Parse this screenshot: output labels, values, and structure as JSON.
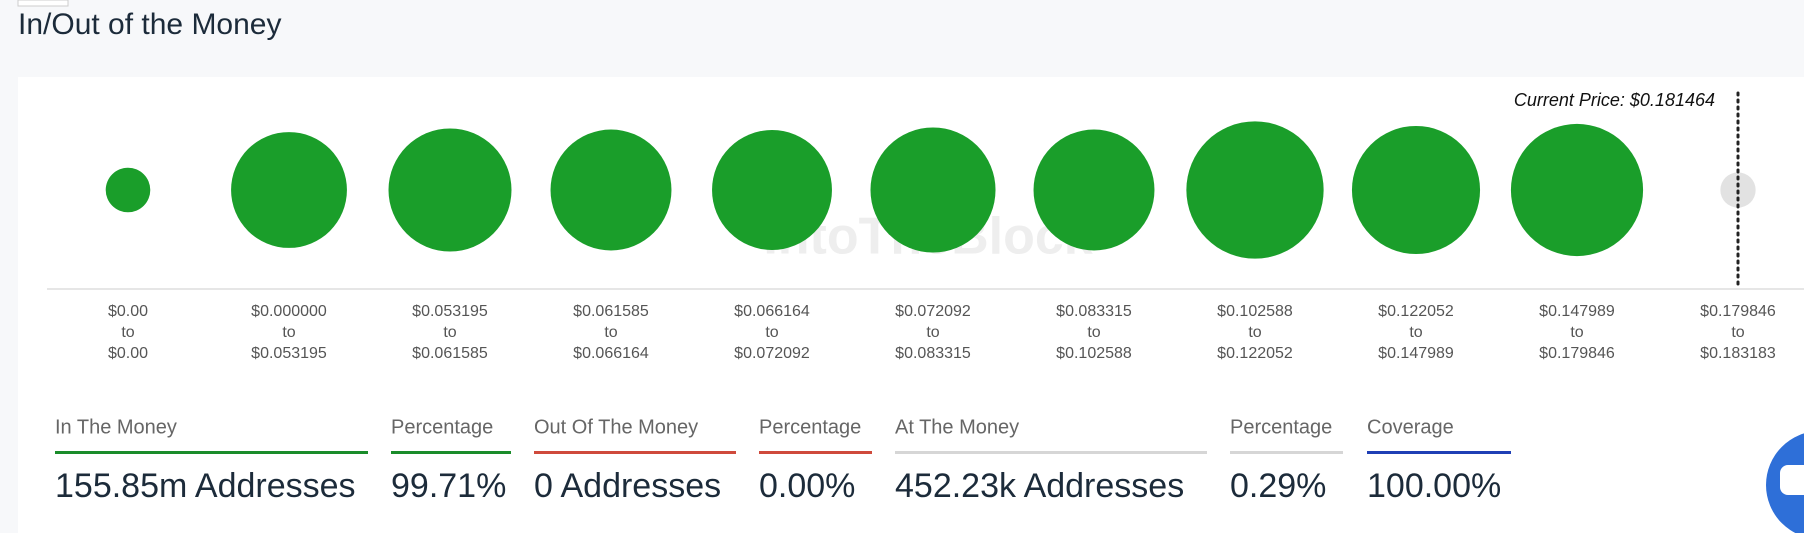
{
  "chart_data": {
    "type": "bubble",
    "title": "In/Out of the Money",
    "watermark": "IntoTheBlock",
    "current_price_label": "Current Price: $0.181464",
    "range_joiner": "to",
    "ranges": [
      {
        "from": "$0.00",
        "to": "$0.00"
      },
      {
        "from": "$0.000000",
        "to": "$0.053195"
      },
      {
        "from": "$0.053195",
        "to": "$0.061585"
      },
      {
        "from": "$0.061585",
        "to": "$0.066164"
      },
      {
        "from": "$0.066164",
        "to": "$0.072092"
      },
      {
        "from": "$0.072092",
        "to": "$0.083315"
      },
      {
        "from": "$0.083315",
        "to": "$0.102588"
      },
      {
        "from": "$0.102588",
        "to": "$0.122052"
      },
      {
        "from": "$0.122052",
        "to": "$0.147989"
      },
      {
        "from": "$0.147989",
        "to": "$0.179846"
      },
      {
        "from": "$0.179846",
        "to": "$0.183183"
      }
    ],
    "values": [
      1.06,
      14.39,
      16.56,
      15.92,
      15.61,
      17.21,
      15.92,
      21.37,
      18.21,
      19.58,
      0.45
    ],
    "colors": [
      "#1a9e2a",
      "#1a9e2a",
      "#1a9e2a",
      "#1a9e2a",
      "#1a9e2a",
      "#1a9e2a",
      "#1a9e2a",
      "#1a9e2a",
      "#1a9e2a",
      "#1a9e2a",
      "#e2e2e2"
    ]
  },
  "stats": [
    {
      "label": "In The Money",
      "value": "155.85m Addresses",
      "color": "#1a8c2a"
    },
    {
      "label": "Percentage",
      "value": "99.71%",
      "color": "#1a8c2a"
    },
    {
      "label": "Out Of The Money",
      "value": "0 Addresses",
      "color": "#cf4a3c"
    },
    {
      "label": "Percentage",
      "value": "0.00%",
      "color": "#cf4a3c"
    },
    {
      "label": "At The Money",
      "value": "452.23k Addresses",
      "color": "#d6d6d6"
    },
    {
      "label": "Percentage",
      "value": "0.29%",
      "color": "#d6d6d6"
    },
    {
      "label": "Coverage",
      "value": "100.00%",
      "color": "#1f3fb5"
    }
  ]
}
